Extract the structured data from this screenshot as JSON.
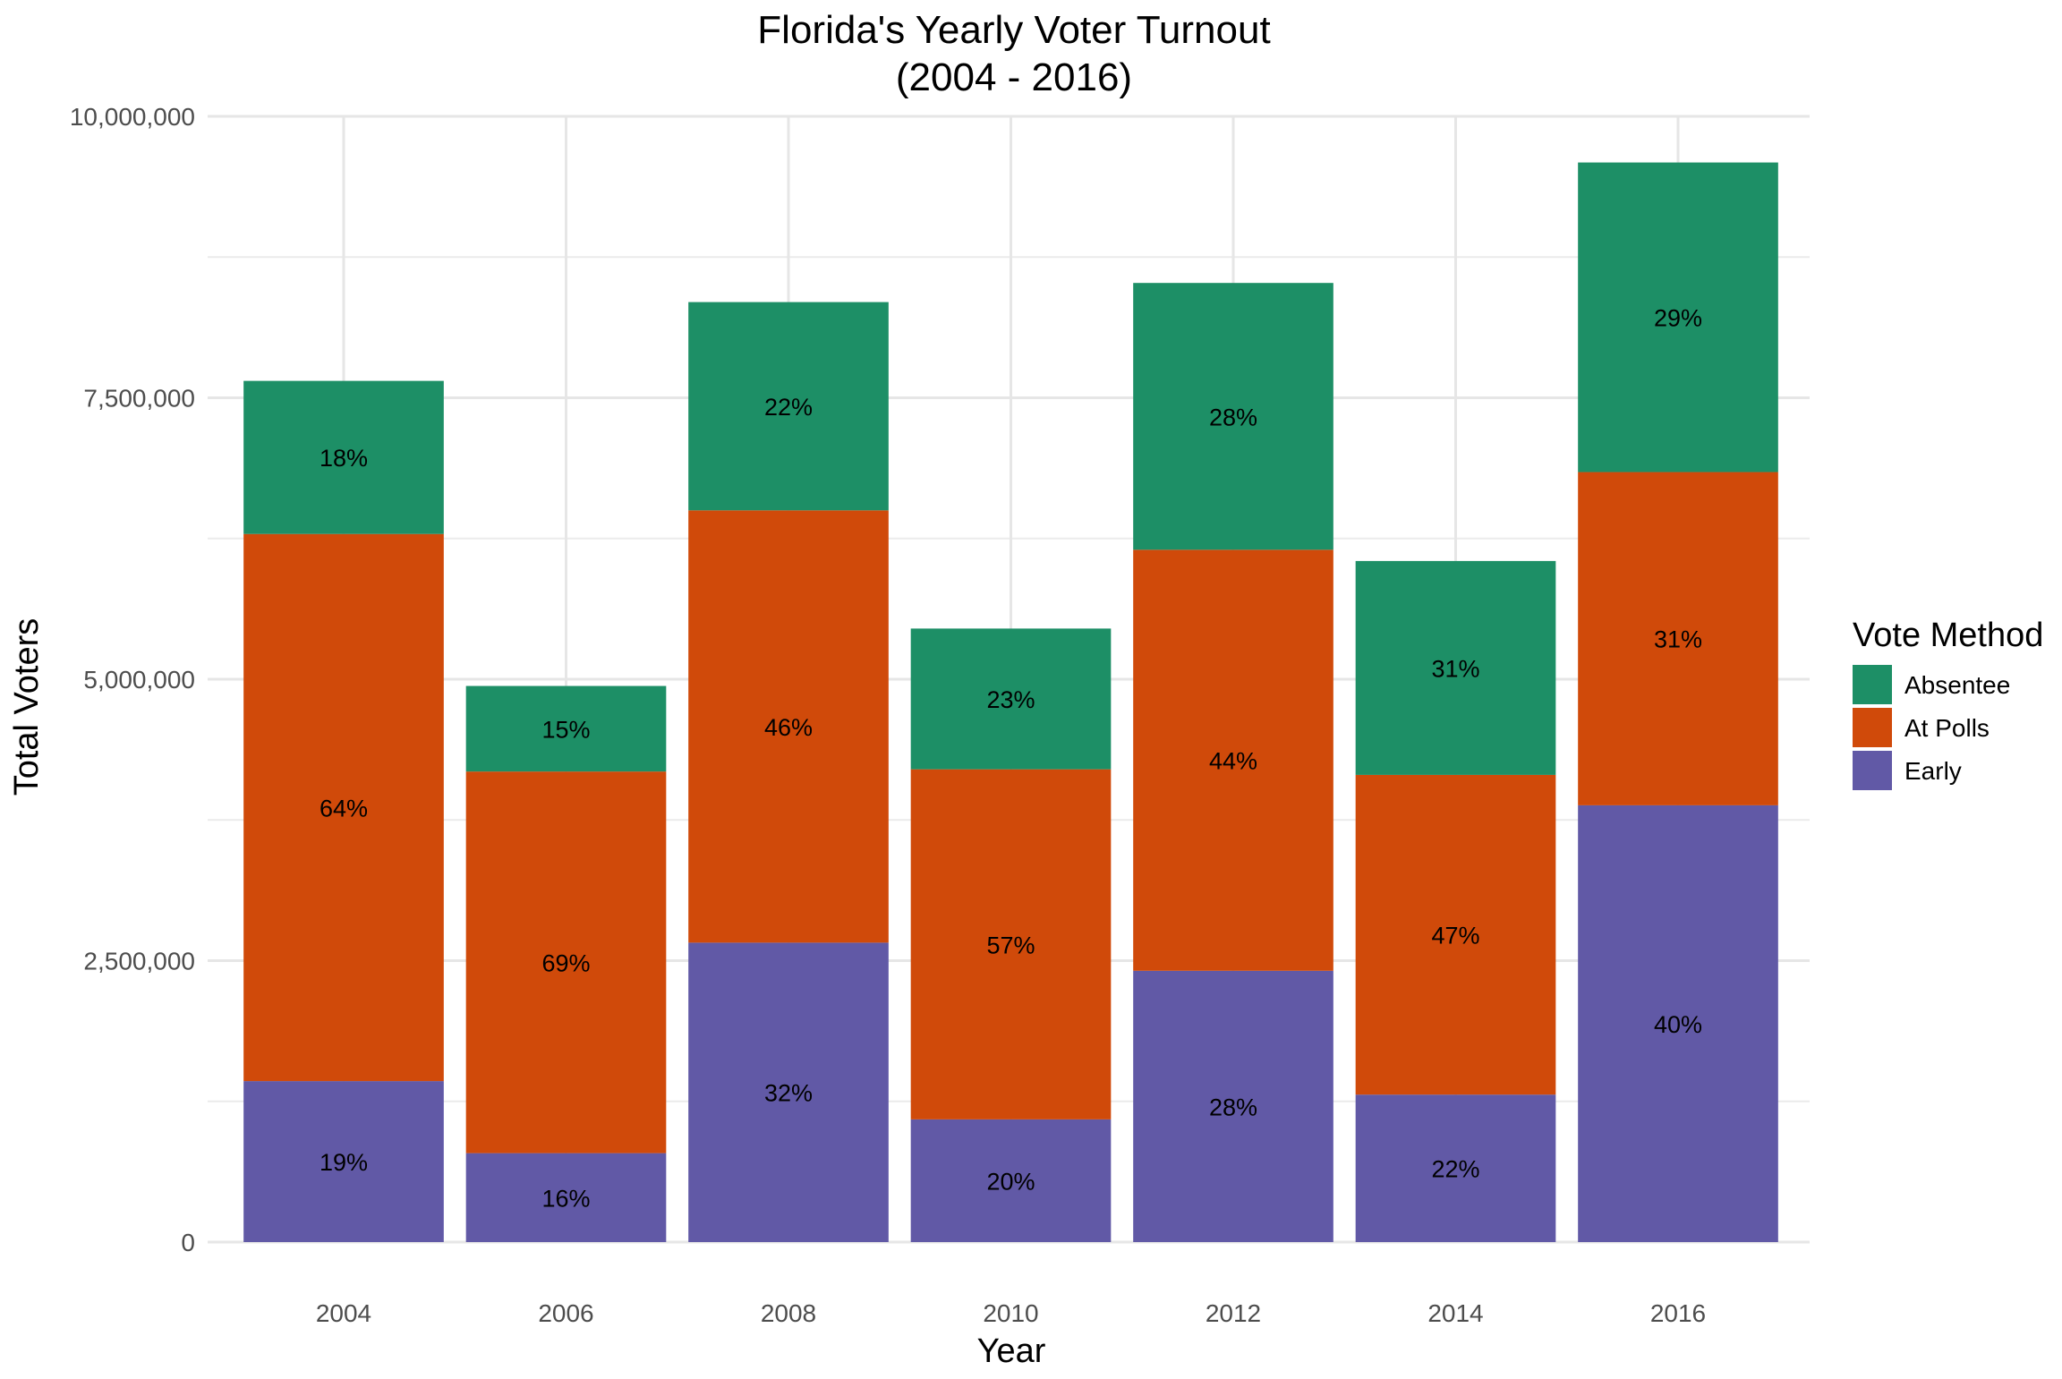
{
  "chart_data": {
    "type": "bar",
    "stacked": true,
    "title_line1": "Florida's Yearly Voter Turnout",
    "title_line2": "(2004 - 2016)",
    "xlabel": "Year",
    "ylabel": "Total Voters",
    "ylim": [
      0,
      10000000
    ],
    "y_ticks": [
      0,
      2500000,
      5000000,
      7500000,
      10000000
    ],
    "y_tick_labels": [
      "0",
      "2,500,000",
      "5,000,000",
      "7,500,000",
      "10,000,000"
    ],
    "categories": [
      "2004",
      "2006",
      "2008",
      "2010",
      "2012",
      "2014",
      "2016"
    ],
    "grid": true,
    "legend": {
      "title": "Vote Method",
      "position": "right",
      "entries": [
        "Absentee",
        "At Polls",
        "Early"
      ]
    },
    "series": [
      {
        "name": "Early",
        "color": "#6159a6",
        "values": [
          1430000,
          790000,
          2660000,
          1090000,
          2410000,
          1310000,
          3880000
        ],
        "labels": [
          "19%",
          "16%",
          "32%",
          "20%",
          "28%",
          "22%",
          "40%"
        ]
      },
      {
        "name": "At Polls",
        "color": "#d04a0a",
        "values": [
          4860000,
          3390000,
          3840000,
          3110000,
          3740000,
          2840000,
          2960000
        ],
        "labels": [
          "64%",
          "69%",
          "46%",
          "57%",
          "44%",
          "47%",
          "31%"
        ]
      },
      {
        "name": "Absentee",
        "color": "#1d8f66",
        "values": [
          1360000,
          760000,
          1850000,
          1250000,
          2370000,
          1900000,
          2750000
        ],
        "labels": [
          "18%",
          "15%",
          "22%",
          "23%",
          "28%",
          "31%",
          "29%"
        ]
      }
    ]
  }
}
